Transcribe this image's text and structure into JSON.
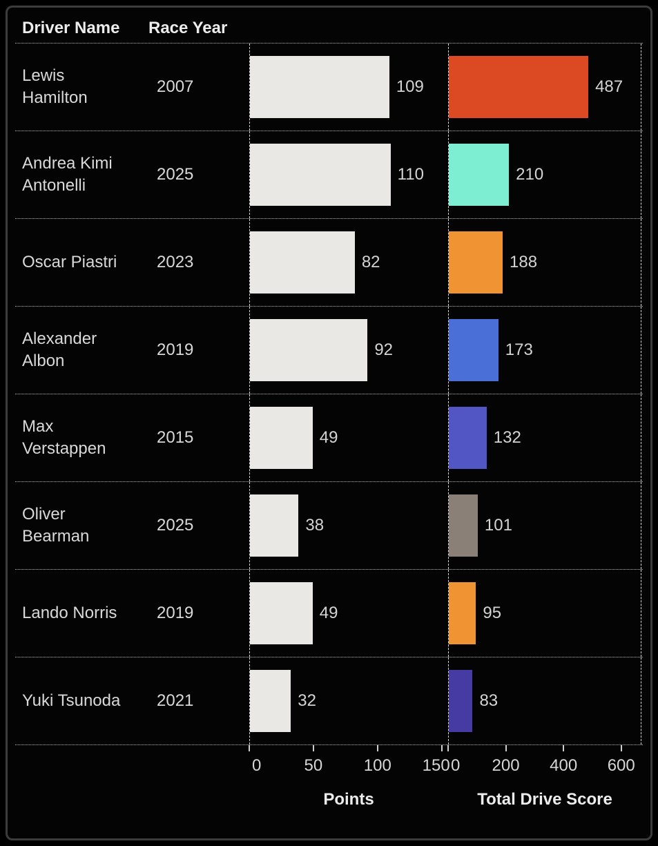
{
  "chart_data": {
    "type": "bar",
    "orientation": "horizontal",
    "row_header_columns": [
      "Driver Name",
      "Race Year"
    ],
    "panels": [
      {
        "name": "Points",
        "ticks": [
          0,
          50,
          100,
          150
        ],
        "axis_max": 155,
        "bar_color": "#e9e8e5"
      },
      {
        "name": "Total Drive Score",
        "ticks": [
          0,
          200,
          400,
          600
        ],
        "axis_max": 670
      }
    ],
    "rows": [
      {
        "driver": "Lewis Hamilton",
        "race_year": "2007",
        "points": 109,
        "total_drive_score": 487,
        "score_bar_color": "#db4a22"
      },
      {
        "driver": "Andrea Kimi Antonelli",
        "race_year": "2025",
        "points": 110,
        "total_drive_score": 210,
        "score_bar_color": "#7deed2"
      },
      {
        "driver": "Oscar Piastri",
        "race_year": "2023",
        "points": 82,
        "total_drive_score": 188,
        "score_bar_color": "#ef9333"
      },
      {
        "driver": "Alexander Albon",
        "race_year": "2019",
        "points": 92,
        "total_drive_score": 173,
        "score_bar_color": "#4a70d8"
      },
      {
        "driver": "Max Verstappen",
        "race_year": "2015",
        "points": 49,
        "total_drive_score": 132,
        "score_bar_color": "#5156c4"
      },
      {
        "driver": "Oliver Bearman",
        "race_year": "2025",
        "points": 38,
        "total_drive_score": 101,
        "score_bar_color": "#8b8078"
      },
      {
        "driver": "Lando Norris",
        "race_year": "2019",
        "points": 49,
        "total_drive_score": 95,
        "score_bar_color": "#ef9333"
      },
      {
        "driver": "Yuki Tsunoda",
        "race_year": "2021",
        "points": 32,
        "total_drive_score": 83,
        "score_bar_color": "#453ba3"
      }
    ],
    "grid": "dotted-row-separators",
    "background_color": "#000000",
    "points_bar_color": "#e9e8e5"
  }
}
